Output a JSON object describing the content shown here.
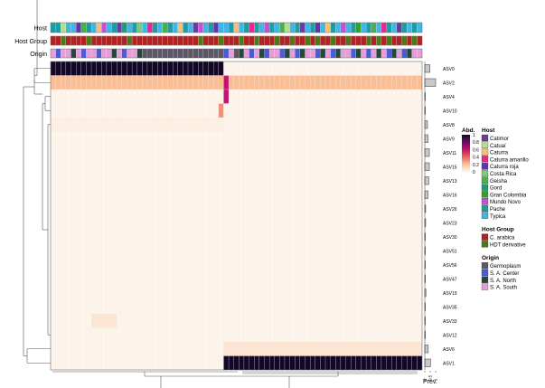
{
  "chart_data": {
    "type": "heatmap",
    "title": "",
    "row_labels": [
      "ASV0",
      "ASV2",
      "ASV4",
      "ASV10",
      "ASV8",
      "ASV9",
      "ASV11",
      "ASV15",
      "ASV13",
      "ASV16",
      "ASV26",
      "ASV23",
      "ASV30",
      "ASV51",
      "ASV56",
      "ASV47",
      "ASV19",
      "ASV35",
      "ASV33",
      "ASV12",
      "ASV6",
      "ASV1"
    ],
    "n_samples": 73,
    "left_block_size": 34,
    "block_values": {
      "ASV0": [
        1.0,
        0.0
      ],
      "ASV2": [
        0.2,
        0.2
      ],
      "ASV4": [
        0.0,
        0.0
      ],
      "ASV10": [
        0.0,
        0.0
      ],
      "ASV8": [
        0.02,
        0.0
      ],
      "ASV6": [
        0.0,
        0.06
      ],
      "ASV1": [
        0.0,
        1.0
      ]
    },
    "special_cells": [
      {
        "row": "ASV2",
        "sample": 34,
        "value": 0.6
      },
      {
        "row": "ASV4",
        "sample": 34,
        "value": 0.6
      },
      {
        "row": "ASV10",
        "sample": 33,
        "value": 0.3
      },
      {
        "row": "ASV33",
        "sample": 8,
        "value": 0.06
      },
      {
        "row": "ASV33",
        "sample": 9,
        "value": 0.06
      },
      {
        "row": "ASV33",
        "sample": 10,
        "value": 0.06
      },
      {
        "row": "ASV33",
        "sample": 11,
        "value": 0.06
      },
      {
        "row": "ASV33",
        "sample": 12,
        "value": 0.06
      }
    ],
    "prevalence": {
      "label": "Prev.",
      "ticks": [
        "0",
        "0.5",
        "1"
      ],
      "values": [
        0.47,
        1.0,
        0.0,
        0.02,
        0.25,
        0.3,
        0.42,
        0.42,
        0.37,
        0.3,
        0.08,
        0.08,
        0.0,
        0.0,
        0.0,
        0.0,
        0.1,
        0.0,
        0.05,
        0.05,
        0.32,
        0.53
      ]
    },
    "abundance_legend": {
      "title": "Abd.",
      "ticks": [
        "1",
        "0.8",
        "0.6",
        "0.4",
        "0.2",
        "0"
      ]
    },
    "annotations": [
      {
        "label": "Host",
        "levels": [
          "Catimor",
          "Catuaí",
          "Caturra",
          "Caturra amarillo",
          "Caturra roja",
          "Costa Rica",
          "Geisha",
          "Gord",
          "Gran Colombia",
          "Mundo Novo",
          "Pache",
          "Typica"
        ],
        "colors": [
          "#6a3d9a",
          "#b2df8a",
          "#fdbf6f",
          "#e7298a",
          "#5e35b1",
          "#7fc97f",
          "#4daf4a",
          "#1b9e77",
          "#33a02c",
          "#c54fd6",
          "#1f9ba4",
          "#41b6e6"
        ]
      },
      {
        "label": "Host Group",
        "levels": [
          "C. arabica",
          "HDT derivative"
        ],
        "colors": [
          "#b22222",
          "#4b7a17"
        ]
      },
      {
        "label": "Origin",
        "levels": [
          "Germoplasm",
          "S. A. Center",
          "S. A. North",
          "S. A. South"
        ],
        "colors": [
          "#5b5766",
          "#4a5bd4",
          "#25473c",
          "#e69ed7"
        ]
      }
    ]
  }
}
